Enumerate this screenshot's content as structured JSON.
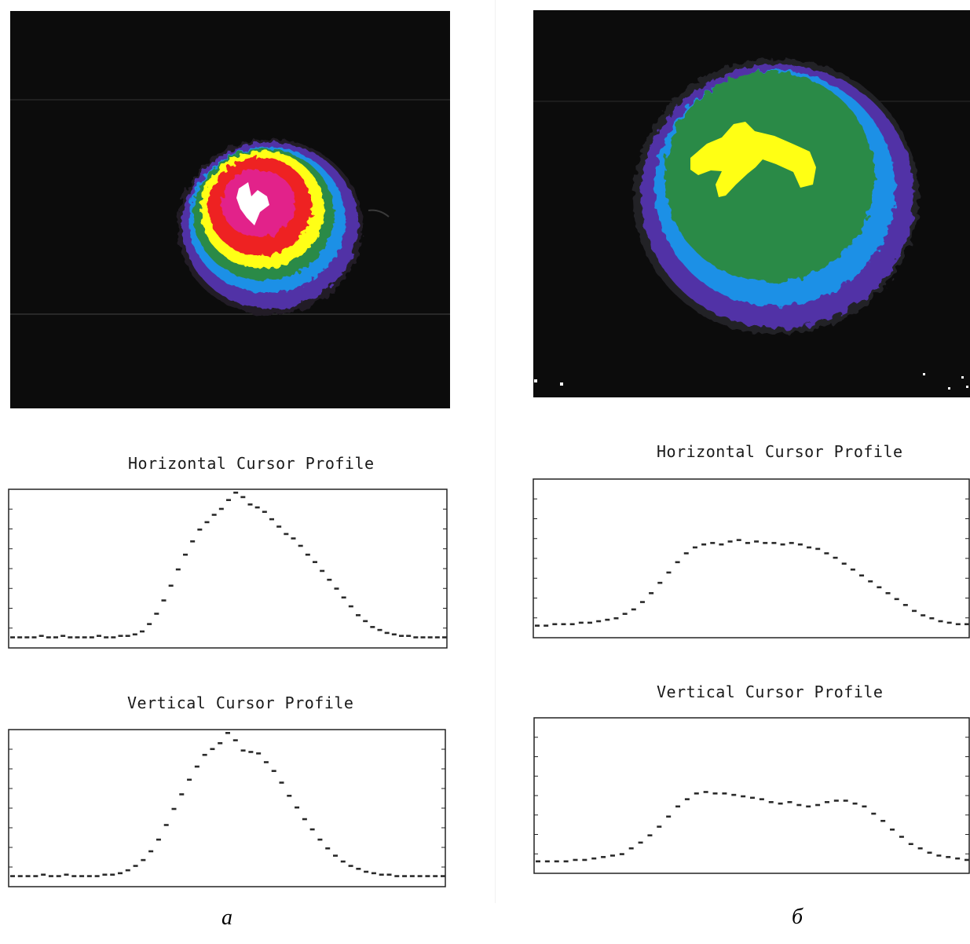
{
  "colors": {
    "background": "#0c0c0c",
    "violet": "#5133a6",
    "blue": "#1e90e6",
    "green": "#2b8a46",
    "yellow": "#ffff14",
    "red": "#ee2222",
    "magenta": "#e2248a",
    "white": "#ffffff",
    "profile": "#2a2a2a"
  },
  "panels": [
    {
      "label": "а",
      "horizontal_title": "Horizontal Cursor Profile",
      "vertical_title": "Vertical Cursor Profile",
      "horizontal_profile": [
        0.02,
        0.02,
        0.02,
        0.02,
        0.03,
        0.02,
        0.02,
        0.03,
        0.02,
        0.02,
        0.02,
        0.02,
        0.03,
        0.02,
        0.02,
        0.03,
        0.03,
        0.04,
        0.06,
        0.11,
        0.18,
        0.27,
        0.37,
        0.48,
        0.58,
        0.67,
        0.75,
        0.8,
        0.85,
        0.89,
        0.95,
        1.0,
        0.97,
        0.92,
        0.9,
        0.87,
        0.82,
        0.77,
        0.72,
        0.69,
        0.64,
        0.58,
        0.53,
        0.47,
        0.41,
        0.35,
        0.29,
        0.23,
        0.17,
        0.13,
        0.09,
        0.07,
        0.05,
        0.04,
        0.03,
        0.03,
        0.02,
        0.02,
        0.02,
        0.02,
        0.02
      ],
      "vertical_profile": [
        0.02,
        0.02,
        0.02,
        0.02,
        0.03,
        0.02,
        0.02,
        0.03,
        0.02,
        0.02,
        0.02,
        0.02,
        0.03,
        0.03,
        0.04,
        0.06,
        0.09,
        0.13,
        0.19,
        0.27,
        0.37,
        0.48,
        0.58,
        0.68,
        0.77,
        0.85,
        0.89,
        0.93,
        1.0,
        0.95,
        0.88,
        0.87,
        0.86,
        0.8,
        0.74,
        0.66,
        0.57,
        0.49,
        0.41,
        0.34,
        0.27,
        0.21,
        0.16,
        0.12,
        0.09,
        0.07,
        0.05,
        0.04,
        0.03,
        0.03,
        0.02,
        0.02,
        0.02,
        0.02,
        0.02,
        0.02,
        0.02
      ]
    },
    {
      "label": "б",
      "horizontal_title": "Horizontal Cursor Profile",
      "vertical_title": "Vertical Cursor Profile",
      "horizontal_profile": [
        0.03,
        0.03,
        0.04,
        0.04,
        0.04,
        0.05,
        0.05,
        0.06,
        0.07,
        0.08,
        0.11,
        0.14,
        0.19,
        0.25,
        0.32,
        0.39,
        0.46,
        0.52,
        0.56,
        0.58,
        0.59,
        0.58,
        0.6,
        0.61,
        0.59,
        0.6,
        0.59,
        0.59,
        0.58,
        0.59,
        0.58,
        0.56,
        0.55,
        0.52,
        0.49,
        0.45,
        0.41,
        0.37,
        0.33,
        0.29,
        0.25,
        0.21,
        0.17,
        0.13,
        0.1,
        0.08,
        0.06,
        0.05,
        0.04,
        0.04
      ],
      "vertical_profile": [
        0.03,
        0.03,
        0.03,
        0.03,
        0.04,
        0.04,
        0.05,
        0.06,
        0.07,
        0.08,
        0.12,
        0.16,
        0.21,
        0.27,
        0.34,
        0.41,
        0.46,
        0.5,
        0.51,
        0.5,
        0.5,
        0.49,
        0.48,
        0.47,
        0.46,
        0.44,
        0.43,
        0.44,
        0.42,
        0.41,
        0.42,
        0.44,
        0.45,
        0.45,
        0.43,
        0.41,
        0.36,
        0.31,
        0.25,
        0.2,
        0.15,
        0.12,
        0.09,
        0.07,
        0.06,
        0.05,
        0.04
      ]
    }
  ]
}
